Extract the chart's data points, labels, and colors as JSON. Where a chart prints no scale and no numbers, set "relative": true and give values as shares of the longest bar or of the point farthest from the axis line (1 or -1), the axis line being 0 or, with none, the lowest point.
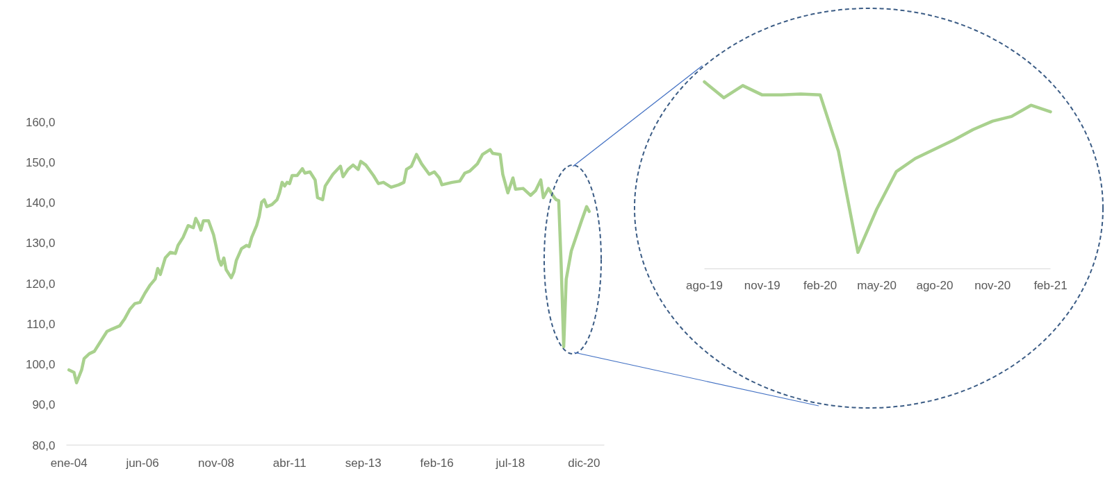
{
  "chart_data": [
    {
      "type": "line",
      "x": [
        "2004-01",
        "2004-03",
        "2004-04",
        "2004-06",
        "2004-07",
        "2004-09",
        "2004-11",
        "2005-01",
        "2005-04",
        "2005-06",
        "2005-09",
        "2005-11",
        "2006-01",
        "2006-03",
        "2006-05",
        "2006-07",
        "2006-09",
        "2006-11",
        "2006-12",
        "2007-01",
        "2007-03",
        "2007-05",
        "2007-07",
        "2007-08",
        "2007-10",
        "2007-12",
        "2008-02",
        "2008-03",
        "2008-04",
        "2008-05",
        "2008-06",
        "2008-08",
        "2008-10",
        "2008-11",
        "2008-12",
        "2009-01",
        "2009-02",
        "2009-03",
        "2009-05",
        "2009-06",
        "2009-07",
        "2009-09",
        "2009-11",
        "2009-12",
        "2010-01",
        "2010-03",
        "2010-04",
        "2010-05",
        "2010-06",
        "2010-07",
        "2010-09",
        "2010-11",
        "2010-12",
        "2011-01",
        "2011-02",
        "2011-03",
        "2011-04",
        "2011-05",
        "2011-07",
        "2011-09",
        "2011-10",
        "2011-12",
        "2012-02",
        "2012-03",
        "2012-05",
        "2012-06",
        "2012-09",
        "2012-12",
        "2013-01",
        "2013-03",
        "2013-05",
        "2013-07",
        "2013-08",
        "2013-10",
        "2014-01",
        "2014-03",
        "2014-05",
        "2014-08",
        "2014-11",
        "2015-01",
        "2015-02",
        "2015-04",
        "2015-06",
        "2015-08",
        "2015-11",
        "2016-01",
        "2016-03",
        "2016-04",
        "2016-08",
        "2016-11",
        "2017-01",
        "2017-03",
        "2017-06",
        "2017-08",
        "2017-11",
        "2017-12",
        "2018-03",
        "2018-04",
        "2018-06",
        "2018-08",
        "2018-09",
        "2018-12",
        "2019-03",
        "2019-05",
        "2019-07",
        "2019-08",
        "2019-10",
        "2019-12",
        "2020-01",
        "2020-02",
        "2020-03",
        "2020-04",
        "2020-05",
        "2020-07",
        "2020-11",
        "2021-01",
        "2021-02"
      ],
      "series": [
        {
          "color": "#a9d18e",
          "values": [
            98.6,
            98.0,
            95.4,
            98.6,
            101.4,
            102.6,
            103.2,
            105.2,
            108.1,
            108.7,
            109.5,
            111.3,
            113.6,
            115.0,
            115.3,
            117.6,
            119.6,
            121.1,
            123.7,
            122.2,
            126.3,
            127.7,
            127.4,
            129.4,
            131.4,
            134.3,
            133.8,
            136.1,
            134.9,
            133.2,
            135.5,
            135.5,
            132.0,
            129.1,
            126.0,
            124.5,
            126.3,
            123.4,
            121.4,
            122.8,
            125.7,
            128.6,
            129.4,
            129.1,
            131.4,
            134.3,
            136.6,
            140.1,
            140.7,
            139.0,
            139.5,
            140.7,
            142.4,
            145.0,
            144.1,
            145.0,
            144.7,
            146.7,
            146.7,
            148.4,
            147.3,
            147.6,
            145.6,
            141.2,
            140.7,
            144.1,
            147.0,
            149.0,
            146.4,
            148.2,
            149.3,
            148.2,
            150.2,
            149.3,
            146.7,
            144.7,
            145.0,
            143.8,
            144.4,
            145.0,
            148.2,
            149.0,
            151.9,
            149.6,
            147.0,
            147.6,
            146.1,
            144.4,
            145.0,
            145.3,
            147.3,
            147.8,
            149.6,
            151.9,
            153.1,
            152.2,
            151.9,
            147.0,
            142.4,
            146.1,
            143.3,
            143.5,
            141.8,
            143.0,
            145.6,
            141.2,
            143.5,
            141.5,
            140.7,
            140.5,
            125.0,
            104.3,
            121.0,
            128.0,
            135.5,
            139.0,
            137.8
          ]
        }
      ],
      "xlim": [
        "2003-12",
        "2021-08"
      ],
      "ylim": [
        80,
        160
      ],
      "xticks": [
        {
          "value": "2004-01",
          "label": "ene-04"
        },
        {
          "value": "2006-06",
          "label": "jun-06"
        },
        {
          "value": "2008-11",
          "label": "nov-08"
        },
        {
          "value": "2011-04",
          "label": "abr-11"
        },
        {
          "value": "2013-09",
          "label": "sep-13"
        },
        {
          "value": "2016-02",
          "label": "feb-16"
        },
        {
          "value": "2018-07",
          "label": "jul-18"
        },
        {
          "value": "2020-12",
          "label": "dic-20"
        }
      ],
      "yticks": [
        {
          "value": 80,
          "label": "80,0"
        },
        {
          "value": 90,
          "label": "90,0"
        },
        {
          "value": 100,
          "label": "100,0"
        },
        {
          "value": 110,
          "label": "110,0"
        },
        {
          "value": 120,
          "label": "120,0"
        },
        {
          "value": 130,
          "label": "130,0"
        },
        {
          "value": 140,
          "label": "140,0"
        },
        {
          "value": 150,
          "label": "150,0"
        },
        {
          "value": 160,
          "label": "160,0"
        }
      ]
    },
    {
      "type": "line",
      "relative": true,
      "tick_labels": "x",
      "x": [
        "2019-08",
        "2019-09",
        "2019-10",
        "2019-11",
        "2019-12",
        "2020-01",
        "2020-02",
        "2020-03",
        "2020-04",
        "2020-05",
        "2020-06",
        "2020-07",
        "2020-08",
        "2020-09",
        "2020-10",
        "2020-11",
        "2020-12",
        "2021-01",
        "2021-02"
      ],
      "series": [
        {
          "color": "#a9d18e",
          "values": [
            1.0,
            0.915,
            0.98,
            0.93,
            0.93,
            0.935,
            0.93,
            0.63,
            0.088,
            0.32,
            0.52,
            0.59,
            0.64,
            0.69,
            0.745,
            0.79,
            0.815,
            0.875,
            0.84
          ]
        }
      ],
      "xlim": [
        "2019-08",
        "2021-02"
      ],
      "xticks": [
        {
          "value": "2019-08",
          "label": "ago-19"
        },
        {
          "value": "2019-11",
          "label": "nov-19"
        },
        {
          "value": "2020-02",
          "label": "feb-20"
        },
        {
          "value": "2020-05",
          "label": "may-20"
        },
        {
          "value": "2020-08",
          "label": "ago-20"
        },
        {
          "value": "2020-11",
          "label": "nov-20"
        },
        {
          "value": "2021-02",
          "label": "feb-21"
        }
      ]
    }
  ]
}
